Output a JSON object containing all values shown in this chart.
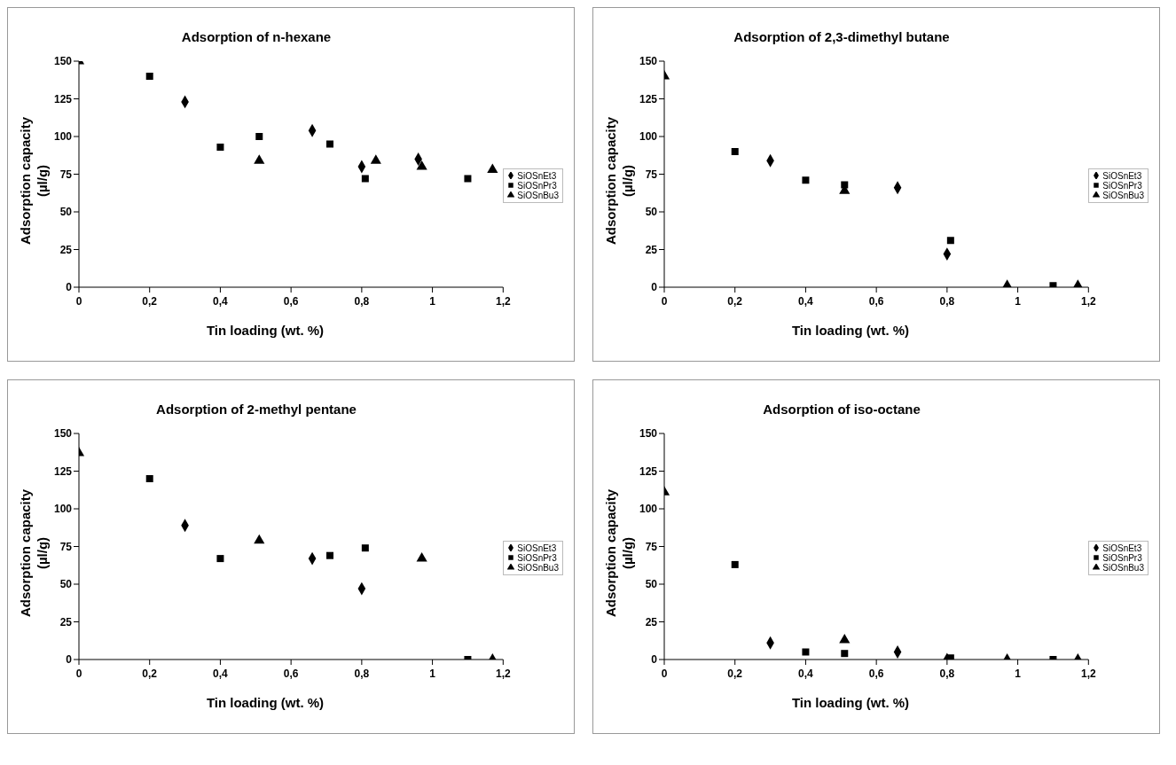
{
  "chart_data": [
    {
      "type": "scatter",
      "title": "Adsorption of n-hexane",
      "xlabel": "Tin loading (wt. %)",
      "ylabel": "Adsorption capacity (µl/g)",
      "xlim": [
        0,
        1.2
      ],
      "xticks": [
        {
          "value": 0,
          "label": "0"
        },
        {
          "value": 0.2,
          "label": "0,2"
        },
        {
          "value": 0.4,
          "label": "0,4"
        },
        {
          "value": 0.6,
          "label": "0,6"
        },
        {
          "value": 0.8,
          "label": "0,8"
        },
        {
          "value": 1,
          "label": "1"
        },
        {
          "value": 1.2,
          "label": "1,2"
        }
      ],
      "ylim": [
        0,
        150
      ],
      "yticks": [
        0,
        25,
        50,
        75,
        100,
        125,
        150
      ],
      "legend": "right",
      "series": [
        {
          "name": "SiOSnEt3",
          "color": "#000000",
          "marker": "diamond",
          "x": [
            0.3,
            0.66,
            0.8,
            0.96
          ],
          "values": [
            123,
            104,
            80,
            85
          ]
        },
        {
          "name": "SiOSnPr3",
          "color": "#000000",
          "marker": "square",
          "x": [
            0.2,
            0.4,
            0.51,
            0.71,
            0.81,
            1.1
          ],
          "values": [
            140,
            93,
            100,
            95,
            72,
            72
          ]
        },
        {
          "name": "SiOSnBu3",
          "color": "#000000",
          "marker": "triangle",
          "x": [
            0,
            0.51,
            0.84,
            0.97,
            1.17
          ],
          "values": [
            150,
            84,
            84,
            80,
            78
          ]
        }
      ]
    },
    {
      "type": "scatter",
      "title": "Adsorption of 2,3-dimethyl butane",
      "xlabel": "Tin loading (wt. %)",
      "ylabel": "Adsorption capacity (µl/g)",
      "xlim": [
        0,
        1.2
      ],
      "xticks": [
        {
          "value": 0,
          "label": "0"
        },
        {
          "value": 0.2,
          "label": "0,2"
        },
        {
          "value": 0.4,
          "label": "0,4"
        },
        {
          "value": 0.6,
          "label": "0,6"
        },
        {
          "value": 0.8,
          "label": "0,8"
        },
        {
          "value": 1,
          "label": "1"
        },
        {
          "value": 1.2,
          "label": "1,2"
        }
      ],
      "ylim": [
        0,
        150
      ],
      "yticks": [
        0,
        25,
        50,
        75,
        100,
        125,
        150
      ],
      "legend": "right",
      "series": [
        {
          "name": "SiOSnEt3",
          "color": "#000000",
          "marker": "diamond",
          "x": [
            0.3,
            0.66,
            0.8
          ],
          "values": [
            84,
            66,
            22
          ]
        },
        {
          "name": "SiOSnPr3",
          "color": "#000000",
          "marker": "square",
          "x": [
            0.2,
            0.4,
            0.51,
            0.81,
            1.1
          ],
          "values": [
            90,
            71,
            68,
            31,
            1
          ]
        },
        {
          "name": "SiOSnBu3",
          "color": "#000000",
          "marker": "triangle",
          "x": [
            0,
            0.51,
            0.97,
            1.17
          ],
          "values": [
            140,
            64,
            1,
            1
          ]
        }
      ]
    },
    {
      "type": "scatter",
      "title": "Adsorption of 2-methyl pentane",
      "xlabel": "Tin loading (wt. %)",
      "ylabel": "Adsorption capacity (µl/g)",
      "xlim": [
        0,
        1.2
      ],
      "xticks": [
        {
          "value": 0,
          "label": "0"
        },
        {
          "value": 0.2,
          "label": "0,2"
        },
        {
          "value": 0.4,
          "label": "0,4"
        },
        {
          "value": 0.6,
          "label": "0,6"
        },
        {
          "value": 0.8,
          "label": "0,8"
        },
        {
          "value": 1,
          "label": "1"
        },
        {
          "value": 1.2,
          "label": "1,2"
        }
      ],
      "ylim": [
        0,
        150
      ],
      "yticks": [
        0,
        25,
        50,
        75,
        100,
        125,
        150
      ],
      "legend": "right",
      "series": [
        {
          "name": "SiOSnEt3",
          "color": "#000000",
          "marker": "diamond",
          "x": [
            0.3,
            0.66,
            0.8
          ],
          "values": [
            89,
            67,
            47
          ]
        },
        {
          "name": "SiOSnPr3",
          "color": "#000000",
          "marker": "square",
          "x": [
            0.2,
            0.4,
            0.71,
            0.81,
            1.1
          ],
          "values": [
            120,
            67,
            69,
            74,
            0
          ]
        },
        {
          "name": "SiOSnBu3",
          "color": "#000000",
          "marker": "triangle",
          "x": [
            0,
            0.51,
            0.97,
            1.17
          ],
          "values": [
            137,
            79,
            67,
            0
          ]
        }
      ]
    },
    {
      "type": "scatter",
      "title": "Adsorption of iso-octane",
      "xlabel": "Tin loading (wt. %)",
      "ylabel": "Adsorption capacity (µl/g)",
      "xlim": [
        0,
        1.2
      ],
      "xticks": [
        {
          "value": 0,
          "label": "0"
        },
        {
          "value": 0.2,
          "label": "0,2"
        },
        {
          "value": 0.4,
          "label": "0,4"
        },
        {
          "value": 0.6,
          "label": "0,6"
        },
        {
          "value": 0.8,
          "label": "0,8"
        },
        {
          "value": 1,
          "label": "1"
        },
        {
          "value": 1.2,
          "label": "1,2"
        }
      ],
      "ylim": [
        0,
        150
      ],
      "yticks": [
        0,
        25,
        50,
        75,
        100,
        125,
        150
      ],
      "legend": "right",
      "series": [
        {
          "name": "SiOSnEt3",
          "color": "#000000",
          "marker": "diamond",
          "x": [
            0.3,
            0.66,
            0.8
          ],
          "values": [
            11,
            5,
            0
          ]
        },
        {
          "name": "SiOSnPr3",
          "color": "#000000",
          "marker": "square",
          "x": [
            0.2,
            0.4,
            0.51,
            0.81,
            1.1
          ],
          "values": [
            63,
            5,
            4,
            1,
            0
          ]
        },
        {
          "name": "SiOSnBu3",
          "color": "#000000",
          "marker": "triangle",
          "x": [
            0,
            0.51,
            0.97,
            1.17
          ],
          "values": [
            111,
            13,
            0,
            0
          ]
        }
      ]
    }
  ]
}
